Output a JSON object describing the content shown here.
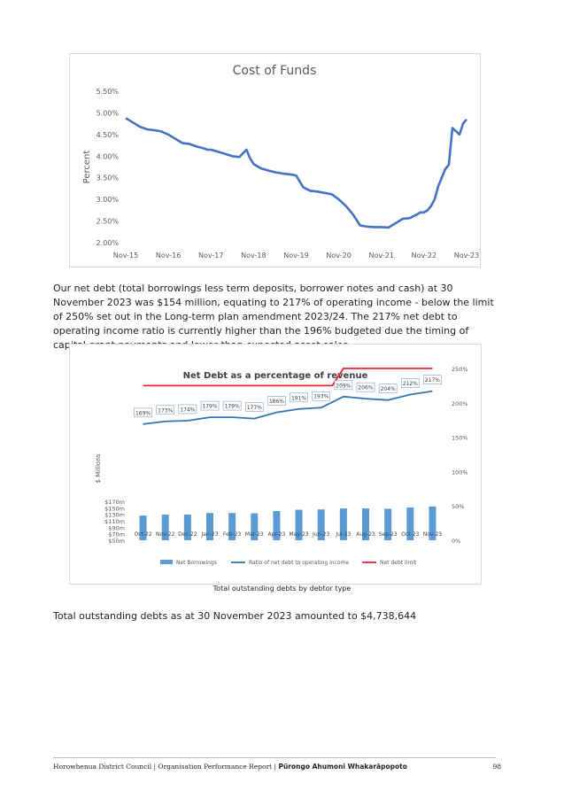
{
  "chart_data": [
    {
      "type": "line",
      "title": "Cost of Funds",
      "ylabel": "Percent",
      "xlabel": "",
      "ylim": [
        2.0,
        5.5
      ],
      "yticks": [
        "5.50%",
        "5.00%",
        "4.50%",
        "4.00%",
        "3.50%",
        "3.00%",
        "2.50%",
        "2.00%"
      ],
      "xticks": [
        "Nov-15",
        "Nov-16",
        "Nov-17",
        "Nov-18",
        "Nov-19",
        "Nov-20",
        "Nov-21",
        "Nov-22",
        "Nov-23"
      ],
      "grid": false,
      "color": "#4472c4",
      "series": [
        {
          "x": [
            "Nov-15",
            "Jan-16",
            "Mar-16",
            "May-16",
            "Jul-16",
            "Sep-16",
            "Nov-16",
            "Jan-17",
            "Mar-17",
            "May-17",
            "Jul-17",
            "Sep-17",
            "Oct-17",
            "Nov-17",
            "Jan-18",
            "Mar-18",
            "May-18",
            "Jul-18",
            "Sep-18",
            "Oct-18",
            "Nov-18",
            "Jan-19",
            "Mar-19",
            "May-19",
            "Jul-19",
            "Sep-19",
            "Oct-19",
            "Nov-19",
            "Jan-20",
            "Mar-20",
            "May-20",
            "Jul-20",
            "Sep-20",
            "Nov-20",
            "Jan-21",
            "Mar-21",
            "May-21",
            "Jul-21",
            "Sep-21",
            "Nov-21",
            "Jan-22",
            "Mar-22",
            "May-22",
            "Jul-22",
            "Sep-22",
            "Oct-22",
            "Nov-22",
            "Dec-22",
            "Jan-23",
            "Feb-23",
            "Mar-23",
            "May-23",
            "Jun-23",
            "Jul-23",
            "Sep-23",
            "Oct-23",
            "Nov-23"
          ],
          "values": [
            4.88,
            4.78,
            4.68,
            4.62,
            4.6,
            4.57,
            4.5,
            4.4,
            4.3,
            4.28,
            4.22,
            4.18,
            4.15,
            4.15,
            4.1,
            4.05,
            4.0,
            3.98,
            4.15,
            3.95,
            3.82,
            3.72,
            3.67,
            3.63,
            3.6,
            3.58,
            3.57,
            3.55,
            3.28,
            3.2,
            3.18,
            3.15,
            3.12,
            3.0,
            2.85,
            2.65,
            2.4,
            2.37,
            2.36,
            2.36,
            2.35,
            2.45,
            2.55,
            2.57,
            2.65,
            2.7,
            2.7,
            2.75,
            2.85,
            3.0,
            3.3,
            3.7,
            3.8,
            4.65,
            4.5,
            4.75,
            4.85
          ]
        }
      ]
    },
    {
      "type": "bar",
      "title": "Net Debt as a percentage of revenue",
      "ylabel": "$ Millions",
      "ylim": [
        50,
        170
      ],
      "y2lim": [
        0,
        250
      ],
      "yticks": [
        "$170m",
        "$150m",
        "$130m",
        "$110m",
        "$90m",
        "$70m",
        "$50m"
      ],
      "y2ticks": [
        "250%",
        "200%",
        "150%",
        "100%",
        "50%",
        "0%"
      ],
      "categories": [
        "Oct-22",
        "Nov-22",
        "Dec-22",
        "Jan-23",
        "Feb-23",
        "Mar-23",
        "Apr-23",
        "May-23",
        "Jun-23",
        "Jul-23",
        "Aug-23",
        "Sep-23",
        "Oct-23",
        "Nov-23"
      ],
      "series": [
        {
          "name": "Net Borrowings",
          "type": "bar",
          "axis": "left",
          "color": "#5b9bd5",
          "values": [
            126,
            129,
            129,
            134,
            134,
            133,
            140,
            144,
            145,
            148,
            148,
            147,
            151,
            154
          ]
        },
        {
          "name": "Ratio of net debt to operating income",
          "type": "line",
          "axis": "right",
          "color": "#2e75b6",
          "values": [
            169,
            173,
            174,
            179,
            179,
            177,
            186,
            191,
            193,
            209,
            206,
            204,
            212,
            217
          ],
          "labels": [
            "169%",
            "173%",
            "174%",
            "179%",
            "179%",
            "177%",
            "186%",
            "191%",
            "193%",
            "209%",
            "206%",
            "204%",
            "212%",
            "217%"
          ]
        },
        {
          "name": "Net debt limit",
          "type": "line",
          "axis": "right",
          "color": "#e3242b",
          "values": [
            225,
            225,
            225,
            225,
            225,
            225,
            225,
            225,
            225,
            250,
            250,
            250,
            250,
            250
          ]
        }
      ],
      "legend": "bottom",
      "grid": false
    }
  ],
  "text": {
    "paragraph1": "Our net debt (total borrowings less term deposits, borrower notes and cash) at 30 November 2023 was $154 million, equating to 217% of operating income - below the limit of 250% set out in the Long-term plan amendment 2023/24. The 217% net debt to operating income ratio is currently higher than the 196% budgeted due the timing of capital grant payments and lower than expected asset sales.",
    "caption": "Total outstanding debts by debtor type",
    "paragraph2": "Total outstanding debts as at 30 November 2023 amounted to $4,738,644",
    "footer_plain": "Horowhenua District Council | Organisation Performance Report | ",
    "footer_bold": "Pūrongo Ahumoni Whakarāpopoto",
    "page_number": "98"
  }
}
